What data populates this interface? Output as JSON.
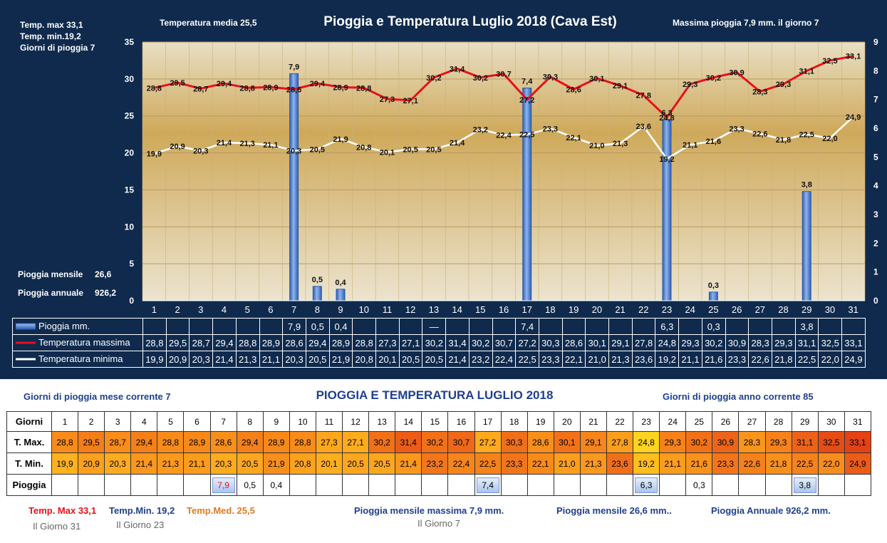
{
  "top_stats": {
    "temp_max": "Temp. max  33,1",
    "temp_min": "Temp.  min.19,2",
    "rain_days": "Giorni  di pioggia   7",
    "temp_media": "Temperatura media  25,5",
    "max_rain": "Massima pioggia  7,9   mm.  il giorno  7",
    "rain_month_label": "Pioggia mensile",
    "rain_month_value": "26,6",
    "rain_year_label": "Pioggia annuale",
    "rain_year_value": "926,2"
  },
  "legend": {
    "rain": "Pioggia mm.",
    "tmax": "Temperatura massima",
    "tmin": "Temperatura minima",
    "dash_note": "—"
  },
  "colors": {
    "background": "#0f2a4d",
    "tmax_line": "#e8101a",
    "tmin_line": "#ffffff",
    "bars": "#4f86d6"
  },
  "chart_data": {
    "type": "line",
    "title": "Pioggia e Temperatura Luglio 2018 (Cava Est)",
    "categories": [
      "1",
      "2",
      "3",
      "4",
      "5",
      "6",
      "7",
      "8",
      "9",
      "10",
      "11",
      "12",
      "13",
      "14",
      "15",
      "16",
      "17",
      "18",
      "19",
      "20",
      "21",
      "22",
      "23",
      "24",
      "25",
      "26",
      "27",
      "28",
      "29",
      "30",
      "31"
    ],
    "series": [
      {
        "name": "Temperatura massima",
        "type": "line",
        "axis": "left",
        "values": [
          28.8,
          29.5,
          28.7,
          29.4,
          28.8,
          28.9,
          28.6,
          29.4,
          28.9,
          28.8,
          27.3,
          27.1,
          30.2,
          31.4,
          30.2,
          30.7,
          27.2,
          30.3,
          28.6,
          30.1,
          29.1,
          27.8,
          24.8,
          29.3,
          30.2,
          30.9,
          28.3,
          29.3,
          31.1,
          32.5,
          33.1
        ]
      },
      {
        "name": "Temperatura minima",
        "type": "line",
        "axis": "left",
        "values": [
          19.9,
          20.9,
          20.3,
          21.4,
          21.3,
          21.1,
          20.3,
          20.5,
          21.9,
          20.8,
          20.1,
          20.5,
          20.5,
          21.4,
          23.2,
          22.4,
          22.5,
          23.3,
          22.1,
          21.0,
          21.3,
          23.6,
          19.2,
          21.1,
          21.6,
          23.3,
          22.6,
          21.8,
          22.5,
          22.0,
          24.9
        ]
      },
      {
        "name": "Pioggia mm.",
        "type": "bar",
        "axis": "right",
        "values": [
          null,
          null,
          null,
          null,
          null,
          null,
          7.9,
          0.5,
          0.4,
          null,
          null,
          null,
          null,
          null,
          null,
          null,
          7.4,
          null,
          null,
          null,
          null,
          null,
          6.3,
          null,
          0.3,
          null,
          null,
          null,
          3.8,
          null,
          null
        ]
      }
    ],
    "y_left": {
      "min": 0,
      "max": 35,
      "ticks": [
        0,
        5,
        10,
        15,
        20,
        25,
        30,
        35
      ]
    },
    "y_right": {
      "min": 0,
      "max": 9,
      "ticks": [
        0,
        1,
        2,
        3,
        4,
        5,
        6,
        7,
        8,
        9
      ]
    },
    "grid": true,
    "legend_position": "bottom-table"
  },
  "bottom": {
    "title": "PIOGGIA E TEMPERATURA LUGLIO 2018",
    "rain_days_month": "Giorni di pioggia  mese corrente    7",
    "rain_days_year": "Giorni di pioggia  anno corrente  85",
    "row_labels": {
      "days": "Giorni",
      "tmax": "T. Max.",
      "tmin": "T. Min.",
      "rain": "Pioggia"
    },
    "footer": {
      "tmax": "Temp. Max 33,1",
      "tmax_day": "Il Giorno  31",
      "tmin": "Temp.Min.  19,2",
      "tmin_day": "Il Giorno 23",
      "tmed": "Temp.Med. 25,5",
      "max_rain": "Pioggia mensile massima 7,9    mm.",
      "max_rain_day": "Il Giorno  7",
      "month_rain": "Pioggia mensile 26,6    mm..",
      "year_rain": "Pioggia Annuale  926,2  mm."
    }
  }
}
